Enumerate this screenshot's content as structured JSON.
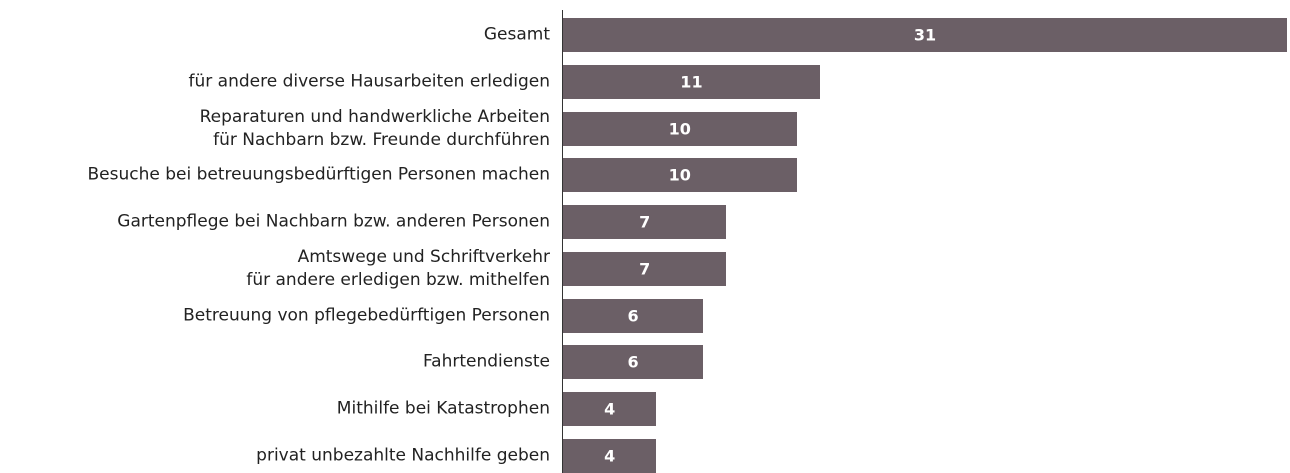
{
  "chart_data": {
    "type": "bar",
    "orientation": "horizontal",
    "categories": [
      "Gesamt",
      "für andere diverse Hausarbeiten erledigen",
      "Reparaturen und handwerkliche Arbeiten\nfür Nachbarn bzw. Freunde durchführen",
      "Besuche bei betreuungsbedürftigen Personen machen",
      "Gartenpflege bei Nachbarn bzw. anderen Personen",
      "Amtswege und Schriftverkehr\nfür andere erledigen bzw. mithelfen",
      "Betreuung von pflegebedürftigen Personen",
      "Fahrtendienste",
      "Mithilfe bei Katastrophen",
      "privat unbezahlte Nachhilfe geben"
    ],
    "values": [
      31,
      11,
      10,
      10,
      7,
      7,
      6,
      6,
      4,
      4
    ],
    "color": "#6b5f66"
  }
}
